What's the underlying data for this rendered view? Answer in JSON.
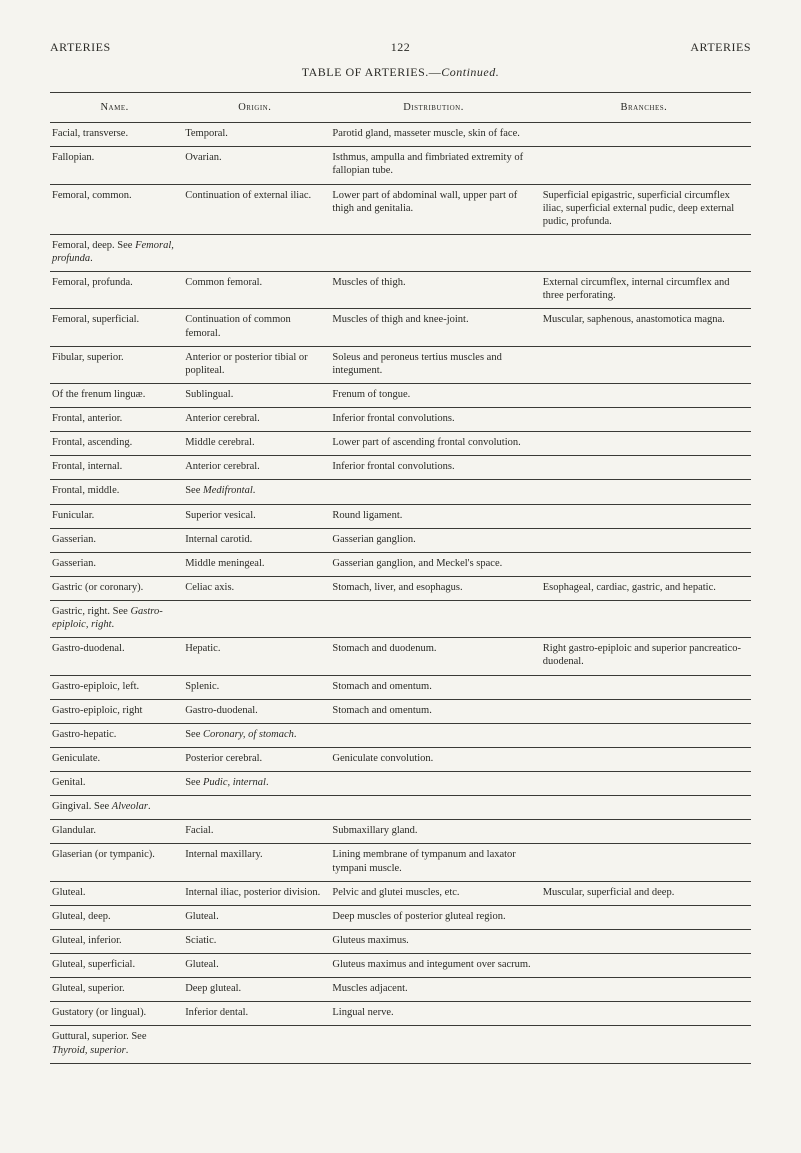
{
  "header": {
    "left": "ARTERIES",
    "page": "122",
    "right": "ARTERIES",
    "title_prefix": "TABLE OF ARTERIES.—",
    "title_suffix": "Continued."
  },
  "columns": {
    "name": "Name.",
    "origin": "Origin.",
    "distribution": "Distribution.",
    "branches": "Branches."
  },
  "rows": [
    {
      "name": "Facial, transverse.",
      "origin": "Temporal.",
      "distribution": "Parotid gland, masseter muscle, skin of face.",
      "branches": ""
    },
    {
      "name": "Fallopian.",
      "origin": "Ovarian.",
      "distribution": "Isthmus, ampulla and fimbriated extremity of fallopian tube.",
      "branches": ""
    },
    {
      "name": "Femoral, common.",
      "origin": "Continuation of external iliac.",
      "distribution": "Lower part of abdominal wall, upper part of thigh and genitalia.",
      "branches": "Superficial epigastric, superficial circumflex iliac, superficial external pudic, deep external pudic, profunda."
    },
    {
      "name_html": "Femoral, deep. See <span class=\"italic\">Femoral, profunda</span>.",
      "origin": "",
      "distribution": "",
      "branches": ""
    },
    {
      "name": "Femoral, profunda.",
      "origin": "Common femoral.",
      "distribution": "Muscles of thigh.",
      "branches": "External circumflex, internal circumflex and three perforating."
    },
    {
      "name": "Femoral, superficial.",
      "origin": "Continuation of common femoral.",
      "distribution": "Muscles of thigh and knee-joint.",
      "branches": "Muscular, saphenous, anastomotica magna."
    },
    {
      "name": "Fibular, superior.",
      "origin": "Anterior or posterior tibial or popliteal.",
      "distribution": "Soleus and peroneus tertius muscles and integument.",
      "branches": ""
    },
    {
      "name": "Of the frenum linguæ.",
      "origin": "Sublingual.",
      "distribution": "Frenum of tongue.",
      "branches": ""
    },
    {
      "name": "Frontal, anterior.",
      "origin": "Anterior cerebral.",
      "distribution": "Inferior frontal convolutions.",
      "branches": ""
    },
    {
      "name": "Frontal, ascending.",
      "origin": "Middle cerebral.",
      "distribution": "Lower part of ascending frontal convolution.",
      "branches": ""
    },
    {
      "name": "Frontal, internal.",
      "origin": "Anterior cerebral.",
      "distribution": "Inferior frontal convolutions.",
      "branches": ""
    },
    {
      "name_html": "Frontal, middle.",
      "origin_html": "See <span class=\"italic\">Medifrontal</span>.",
      "distribution": "",
      "branches": ""
    },
    {
      "name": "Funicular.",
      "origin": "Superior vesical.",
      "distribution": "Round ligament.",
      "branches": ""
    },
    {
      "name": "Gasserian.",
      "origin": "Internal carotid.",
      "distribution": "Gasserian ganglion.",
      "branches": ""
    },
    {
      "name": "Gasserian.",
      "origin": "Middle meningeal.",
      "distribution": "Gasserian ganglion, and Meckel's space.",
      "branches": ""
    },
    {
      "name": "Gastric (or coronary).",
      "origin": "Celiac axis.",
      "distribution": "Stomach, liver, and esophagus.",
      "branches": "Esophageal, cardiac, gastric, and hepatic."
    },
    {
      "name_html": "Gastric, right. See <span class=\"italic\">Gastro-epiploic, right</span>.",
      "origin": "",
      "distribution": "",
      "branches": ""
    },
    {
      "name": "Gastro-duodenal.",
      "origin": "Hepatic.",
      "distribution": "Stomach and duodenum.",
      "branches": "Right gastro-epiploic and superior pancreatico-duodenal."
    },
    {
      "name": "Gastro-epiploic, left.",
      "origin": "Splenic.",
      "distribution": "Stomach and omentum.",
      "branches": ""
    },
    {
      "name": "Gastro-epiploic, right",
      "origin": "Gastro-duodenal.",
      "distribution": "Stomach and omentum.",
      "branches": ""
    },
    {
      "name_html": "Gastro-hepatic.",
      "origin_html": "See <span class=\"italic\">Coronary, of stomach</span>.",
      "distribution": "",
      "branches": ""
    },
    {
      "name": "Geniculate.",
      "origin": "Posterior cerebral.",
      "distribution": "Geniculate convolution.",
      "branches": ""
    },
    {
      "name_html": "Genital.",
      "origin_html": "See <span class=\"italic\">Pudic, internal</span>.",
      "distribution": "",
      "branches": ""
    },
    {
      "name_html": "Gingival. See <span class=\"italic\">Alveolar</span>.",
      "origin": "",
      "distribution": "",
      "branches": ""
    },
    {
      "name": "Glandular.",
      "origin": "Facial.",
      "distribution": "Submaxillary gland.",
      "branches": ""
    },
    {
      "name": "Glaserian (or tympanic).",
      "origin": "Internal maxillary.",
      "distribution": "Lining membrane of tympanum and laxator tympani muscle.",
      "branches": ""
    },
    {
      "name": "Gluteal.",
      "origin": "Internal iliac, posterior division.",
      "distribution": "Pelvic and glutei muscles, etc.",
      "branches": "Muscular, superficial and deep."
    },
    {
      "name": "Gluteal, deep.",
      "origin": "Gluteal.",
      "distribution": "Deep muscles of posterior gluteal region.",
      "branches": ""
    },
    {
      "name": "Gluteal, inferior.",
      "origin": "Sciatic.",
      "distribution": "Gluteus maximus.",
      "branches": ""
    },
    {
      "name": "Gluteal, superficial.",
      "origin": "Gluteal.",
      "distribution": "Gluteus maximus and integument over sacrum.",
      "branches": ""
    },
    {
      "name": "Gluteal, superior.",
      "origin": "Deep gluteal.",
      "distribution": "Muscles adjacent.",
      "branches": ""
    },
    {
      "name": "Gustatory (or lingual).",
      "origin": "Inferior dental.",
      "distribution": "Lingual nerve.",
      "branches": ""
    },
    {
      "name_html": "Guttural, superior. See <span class=\"italic\">Thyroid, superior</span>.",
      "origin": "",
      "distribution": "",
      "branches": ""
    }
  ]
}
